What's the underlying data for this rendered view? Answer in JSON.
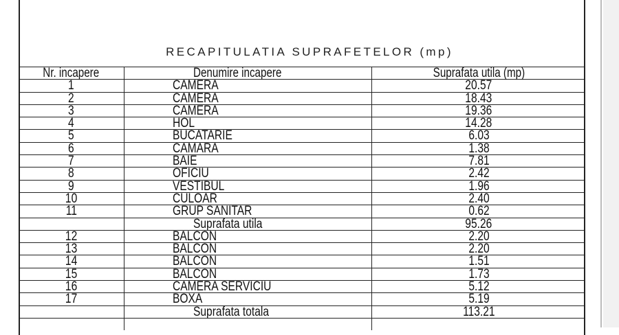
{
  "document": {
    "title": "RECAPITULATIA SUPRAFETELOR (mp)",
    "headers": [
      "Nr. incapere",
      "Denumire incapere",
      "Suprafata utila (mp)"
    ],
    "rows": [
      {
        "nr": "1",
        "name": "CAMERA",
        "area": "20.57"
      },
      {
        "nr": "2",
        "name": "CAMERA",
        "area": "18.43"
      },
      {
        "nr": "3",
        "name": "CAMERA",
        "area": "19.36"
      },
      {
        "nr": "4",
        "name": "HOL",
        "area": "14.28"
      },
      {
        "nr": "5",
        "name": "BUCATARIE",
        "area": "6.03"
      },
      {
        "nr": "6",
        "name": "CAMARA",
        "area": "1.38"
      },
      {
        "nr": "7",
        "name": "BAIE",
        "area": "7.81"
      },
      {
        "nr": "8",
        "name": "OFICIU",
        "area": "2.42"
      },
      {
        "nr": "9",
        "name": "VESTIBUL",
        "area": "1.96"
      },
      {
        "nr": "10",
        "name": "CULOAR",
        "area": "2.40"
      },
      {
        "nr": "11",
        "name": "GRUP SANITAR",
        "area": "0.62"
      },
      {
        "nr": "",
        "name": "Suprafata utila",
        "area": "95.26",
        "summary": true
      },
      {
        "nr": "12",
        "name": "BALCON",
        "area": "2.20"
      },
      {
        "nr": "13",
        "name": "BALCON",
        "area": "2.20"
      },
      {
        "nr": "14",
        "name": "BALCON",
        "area": "1.51"
      },
      {
        "nr": "15",
        "name": "BALCON",
        "area": "1.73"
      },
      {
        "nr": "16",
        "name": "CAMERA SERVICIU",
        "area": "5.12"
      },
      {
        "nr": "17",
        "name": "BOXA",
        "area": "5.19"
      },
      {
        "nr": "",
        "name": "Suprafata totala",
        "area": "113.21",
        "summary": true
      },
      {
        "nr": "",
        "name": "",
        "area": ""
      }
    ]
  }
}
